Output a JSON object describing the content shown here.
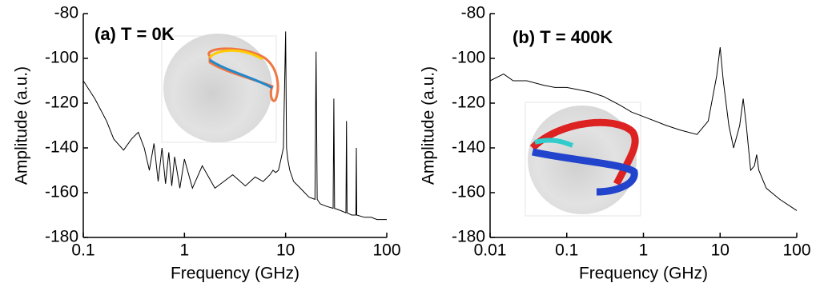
{
  "chart_data": [
    {
      "type": "line",
      "title": "(a) T = 0K",
      "x_label": "Frequency (GHz)",
      "y_label": "Amplitude (a.u.)",
      "log_x": true,
      "color": "#000000",
      "x": [
        0.1,
        0.13,
        0.17,
        0.2,
        0.25,
        0.3,
        0.35,
        0.4,
        0.45,
        0.5,
        0.55,
        0.6,
        0.65,
        0.7,
        0.75,
        0.8,
        0.9,
        1,
        1.2,
        1.5,
        2,
        3,
        4,
        5,
        6,
        7,
        7.5,
        8,
        8.5,
        9,
        9.5,
        10,
        10.2,
        10.5,
        11,
        12,
        14,
        17,
        19.5,
        20,
        20.5,
        22,
        25,
        29.5,
        30,
        30.5,
        35,
        39.5,
        40,
        40.5,
        45,
        49.5,
        50,
        50.5,
        60,
        70,
        80,
        100
      ],
      "values": [
        -110,
        -118,
        -128,
        -136,
        -141,
        -136,
        -133,
        -140,
        -150,
        -138,
        -155,
        -140,
        -156,
        -142,
        -157,
        -144,
        -158,
        -145,
        -158,
        -148,
        -158,
        -152,
        -157,
        -153,
        -155,
        -152,
        -150,
        -151,
        -150,
        -145,
        -140,
        -88,
        -140,
        -145,
        -150,
        -155,
        -158,
        -162,
        -163,
        -97,
        -163,
        -165,
        -166,
        -167,
        -118,
        -167,
        -168,
        -169,
        -128,
        -169,
        -170,
        -170,
        -140,
        -170,
        -171,
        -171,
        -172,
        -172
      ],
      "xlim": [
        0.1,
        100
      ],
      "xticks": [
        0.1,
        1,
        10,
        100
      ],
      "ylim": [
        -180,
        -80
      ],
      "yticks": [
        -80,
        -100,
        -120,
        -140,
        -160,
        -180
      ]
    },
    {
      "type": "line",
      "title": "(b) T = 400K",
      "x_label": "Frequency (GHz)",
      "y_label": "Amplitude (a.u.)",
      "log_x": true,
      "color": "#000000",
      "x": [
        0.01,
        0.015,
        0.02,
        0.03,
        0.05,
        0.07,
        0.1,
        0.2,
        0.3,
        0.5,
        0.7,
        1,
        2,
        3,
        5,
        7,
        9,
        10,
        11,
        13,
        15,
        18,
        20,
        22,
        25,
        28,
        30,
        32,
        40,
        60,
        100
      ],
      "values": [
        -110,
        -107,
        -110,
        -110,
        -112,
        -113,
        -113,
        -115,
        -117,
        -121,
        -124,
        -126,
        -130,
        -132,
        -134,
        -128,
        -108,
        -95,
        -110,
        -130,
        -140,
        -130,
        -118,
        -130,
        -150,
        -148,
        -143,
        -150,
        -158,
        -163,
        -168
      ],
      "xlim": [
        0.01,
        100
      ],
      "xticks": [
        0.01,
        0.1,
        1,
        10,
        100
      ],
      "ylim": [
        -180,
        -80
      ],
      "yticks": [
        -80,
        -100,
        -120,
        -140,
        -160,
        -180
      ]
    }
  ]
}
